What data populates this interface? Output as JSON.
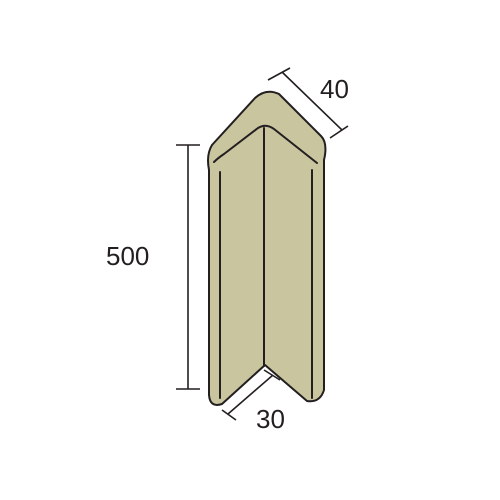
{
  "dimensions": {
    "depth": "40",
    "height": "500",
    "thickness": "30"
  },
  "colors": {
    "face": "#c9c59f",
    "face_shade": "#bdb992",
    "outline": "#231f20"
  }
}
